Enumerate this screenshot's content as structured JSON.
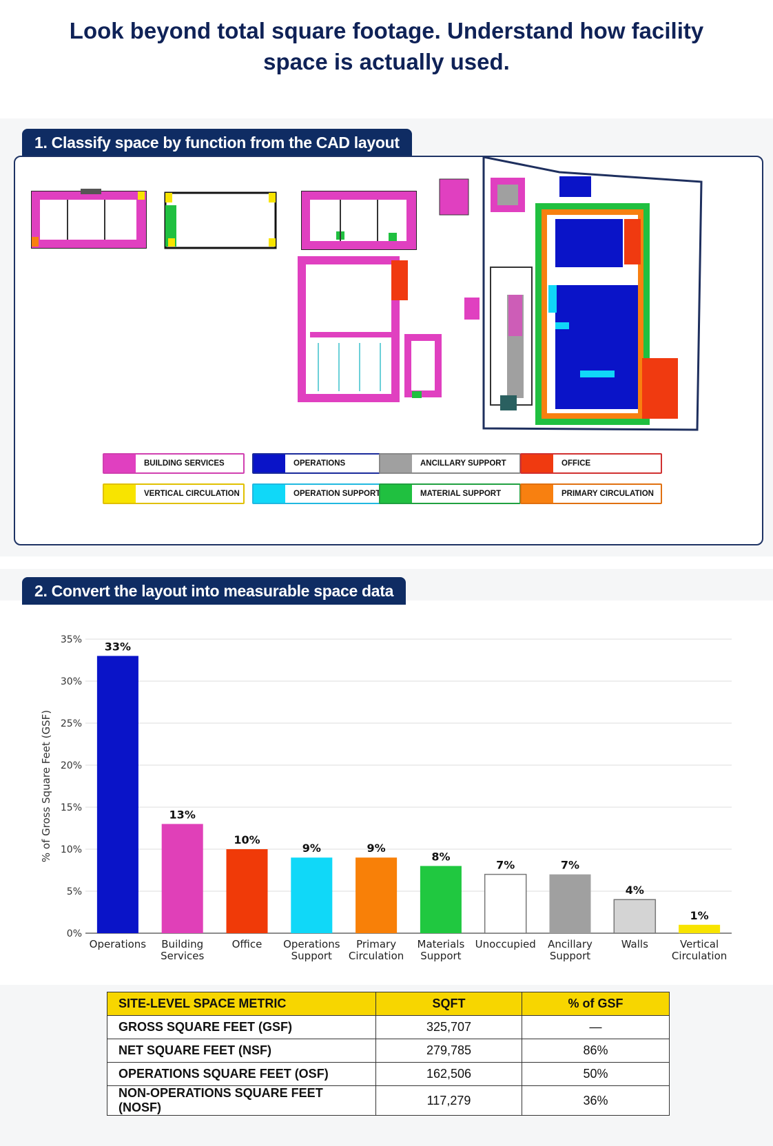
{
  "headline": "Look beyond total square footage. Understand how facility space is actually used.",
  "section1": {
    "title": "1. Classify space by function from the CAD layout"
  },
  "legend": [
    {
      "label": "BUILDING SERVICES",
      "color": "#e040c0",
      "border": "#d040b0"
    },
    {
      "label": "OPERATIONS",
      "color": "#0a14c8",
      "border": "#1a2a9a"
    },
    {
      "label": "ANCILLARY SUPPORT",
      "color": "#a0a0a0",
      "border": "#888888"
    },
    {
      "label": "OFFICE",
      "color": "#f03a10",
      "border": "#d03030"
    },
    {
      "label": "VERTICAL CIRCULATION",
      "color": "#f8e400",
      "border": "#e0c000"
    },
    {
      "label": "OPERATION SUPPORT",
      "color": "#10d8f8",
      "border": "#20b8e0"
    },
    {
      "label": "MATERIAL SUPPORT",
      "color": "#20c040",
      "border": "#20a040"
    },
    {
      "label": "PRIMARY CIRCULATION",
      "color": "#f88010",
      "border": "#e07010"
    }
  ],
  "section2": {
    "title": "2. Convert the layout into measurable space data"
  },
  "chart_data": {
    "type": "bar",
    "categories": [
      "Operations",
      "Building Services",
      "Office",
      "Operations Support",
      "Primary Circulation",
      "Materials Support",
      "Unoccupied",
      "Ancillary Support",
      "Walls",
      "Vertical Circulation"
    ],
    "category_lines": [
      [
        "Operations"
      ],
      [
        "Building",
        "Services"
      ],
      [
        "Office"
      ],
      [
        "Operations",
        "Support"
      ],
      [
        "Primary",
        "Circulation"
      ],
      [
        "Materials",
        "Support"
      ],
      [
        "Unoccupied"
      ],
      [
        "Ancillary",
        "Support"
      ],
      [
        "Walls"
      ],
      [
        "Vertical",
        "Circulation"
      ]
    ],
    "values": [
      33,
      13,
      10,
      9,
      9,
      8,
      7,
      7,
      4,
      1
    ],
    "data_labels": [
      "33%",
      "13%",
      "10%",
      "9%",
      "9%",
      "8%",
      "7%",
      "7%",
      "4%",
      "1%"
    ],
    "colors": [
      "#0a14c8",
      "#e040b8",
      "#f03a08",
      "#10d8f8",
      "#f88008",
      "#20c840",
      "#ffffff",
      "#a0a0a0",
      "#d4d4d4",
      "#f8e400"
    ],
    "outline_categories": [
      "Unoccupied",
      "Walls"
    ],
    "ylabel": "% of Gross Square Feet (GSF)",
    "ylim": [
      0,
      35
    ],
    "yticks": [
      0,
      5,
      10,
      15,
      20,
      25,
      30,
      35
    ],
    "ytick_labels": [
      "0%",
      "5%",
      "10%",
      "15%",
      "20%",
      "25%",
      "30%",
      "35%"
    ],
    "grid": true
  },
  "table": {
    "headers": [
      "SITE-LEVEL SPACE METRIC",
      "SQFT",
      "% of GSF"
    ],
    "rows": [
      [
        "GROSS SQUARE FEET (GSF)",
        "325,707",
        "—"
      ],
      [
        "NET SQUARE FEET (NSF)",
        "279,785",
        "86%"
      ],
      [
        "OPERATIONS SQUARE FEET (OSF)",
        "162,506",
        "50%"
      ],
      [
        "NON-OPERATIONS SQUARE FEET (NOSF)",
        "117,279",
        "36%"
      ]
    ]
  }
}
